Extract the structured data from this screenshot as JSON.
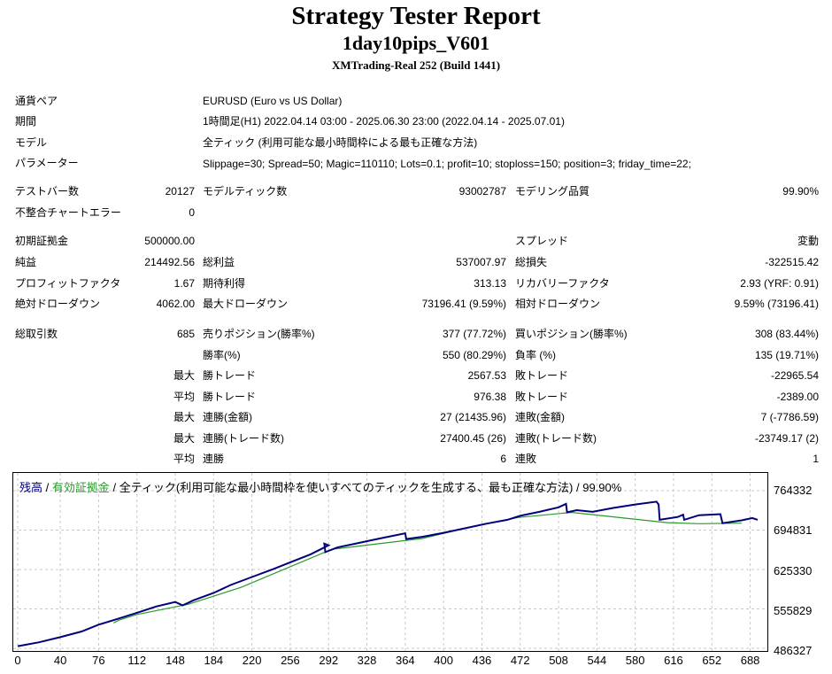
{
  "header": {
    "title": "Strategy Tester Report",
    "subtitle": "1day10pips_V601",
    "build": "XMTrading-Real 252 (Build 1441)"
  },
  "settings": {
    "pair_label": "通貨ペア",
    "pair": "EURUSD (Euro vs US Dollar)",
    "period_label": "期間",
    "period": "1時間足(H1) 2022.04.14 03:00 - 2025.06.30 23:00 (2022.04.14 - 2025.07.01)",
    "model_label": "モデル",
    "model": "全ティック (利用可能な最小時間枠による最も正確な方法)",
    "params_label": "パラメーター",
    "params": "Slippage=30; Spread=50; Magic=110110; Lots=0.1; profit=10; stoploss=150; position=3; friday_time=22;"
  },
  "stats": {
    "bars_label": "テストバー数",
    "bars": "20127",
    "ticks_label": "モデルティック数",
    "ticks": "93002787",
    "quality_label": "モデリング品質",
    "quality": "99.90%",
    "mismatch_label": "不整合チャートエラー",
    "mismatch": "0",
    "deposit_label": "初期証拠金",
    "deposit": "500000.00",
    "spread_label": "スプレッド",
    "spread": "変動",
    "net_label": "純益",
    "net": "214492.56",
    "gross_profit_label": "総利益",
    "gross_profit": "537007.97",
    "gross_loss_label": "総損失",
    "gross_loss": "-322515.42",
    "pf_label": "プロフィットファクタ",
    "pf": "1.67",
    "expected_label": "期待利得",
    "expected": "313.13",
    "recovery_label": "リカバリーファクタ",
    "recovery": "2.93 (YRF: 0.91)",
    "abs_dd_label": "絶対ドローダウン",
    "abs_dd": "4062.00",
    "max_dd_label": "最大ドローダウン",
    "max_dd": "73196.41 (9.59%)",
    "rel_dd_label": "相対ドローダウン",
    "rel_dd": "9.59% (73196.41)",
    "trades_label": "総取引数",
    "trades": "685",
    "short_label": "売りポジション(勝率%)",
    "short": "377 (77.72%)",
    "long_label": "買いポジション(勝率%)",
    "long": "308 (83.44%)",
    "win_label": "勝率(%)",
    "win": "550 (80.29%)",
    "loss_label": "負率 (%)",
    "loss": "135 (19.71%)",
    "max": "最大",
    "avg": "平均",
    "win_trade_label": "勝トレード",
    "lose_trade_label": "敗トレード",
    "max_win": "2567.53",
    "max_loss": "-22965.54",
    "avg_win": "976.38",
    "avg_loss": "-2389.00",
    "cons_win_amt_label": "連勝(金額)",
    "cons_win_amt": "27 (21435.96)",
    "cons_loss_amt_label": "連敗(金額)",
    "cons_loss_amt": "7 (-7786.59)",
    "cons_win_cnt_label": "連勝(トレード数)",
    "cons_win_cnt": "27400.45 (26)",
    "cons_loss_cnt_label": "連敗(トレード数)",
    "cons_loss_cnt": "-23749.17 (2)",
    "avg_cons_win_label": "連勝",
    "avg_cons_win": "6",
    "avg_cons_loss_label": "連敗",
    "avg_cons_loss": "1"
  },
  "legend": {
    "balance": "残高",
    "sep1": " / ",
    "equity": "有効証拠金",
    "rest": " / 全ティック(利用可能な最小時間枠を使いすべてのティックを生成する、最も正確な方法) / 99.90%"
  },
  "chart_data": {
    "type": "line",
    "ylim": [
      486327,
      764332
    ],
    "y_ticks": [
      "764332",
      "694831",
      "625330",
      "555829",
      "486327"
    ],
    "x_ticks": [
      "0",
      "40",
      "76",
      "112",
      "148",
      "184",
      "220",
      "256",
      "292",
      "328",
      "364",
      "400",
      "436",
      "472",
      "508",
      "544",
      "580",
      "616",
      "652",
      "688"
    ],
    "xlim": [
      0,
      700
    ],
    "grid": true,
    "colors": {
      "balance": "#00007a",
      "equity": "#2a9a2a"
    },
    "series": [
      {
        "name": "残高",
        "x": [
          0,
          20,
          40,
          60,
          76,
          90,
          112,
          130,
          148,
          155,
          165,
          184,
          200,
          220,
          240,
          256,
          275,
          292,
          288,
          289,
          300,
          320,
          340,
          364,
          365,
          380,
          400,
          420,
          440,
          460,
          472,
          490,
          508,
          515,
          516,
          525,
          540,
          560,
          580,
          600,
          602,
          603,
          620,
          625,
          626,
          640,
          660,
          662,
          680,
          690,
          695
        ],
        "y": [
          490000,
          497000,
          506000,
          516000,
          528000,
          536000,
          549000,
          560000,
          568000,
          562000,
          571000,
          584000,
          598000,
          612000,
          626000,
          638000,
          652000,
          668000,
          671000,
          656000,
          664000,
          672000,
          680000,
          689000,
          679000,
          683000,
          690000,
          698000,
          706000,
          713000,
          720000,
          727000,
          735000,
          741000,
          726000,
          730000,
          727000,
          734000,
          740000,
          745000,
          740000,
          713000,
          718000,
          722000,
          713000,
          721000,
          723000,
          707000,
          712000,
          716000,
          713000
        ]
      },
      {
        "name": "有効証拠金",
        "x": [
          90,
          95,
          112,
          160,
          210,
          295,
          380,
          420,
          470,
          520,
          610,
          640,
          680
        ],
        "y": [
          531000,
          536000,
          546000,
          564000,
          594000,
          661000,
          680000,
          698000,
          717000,
          726000,
          708000,
          706000,
          707000
        ]
      }
    ]
  }
}
